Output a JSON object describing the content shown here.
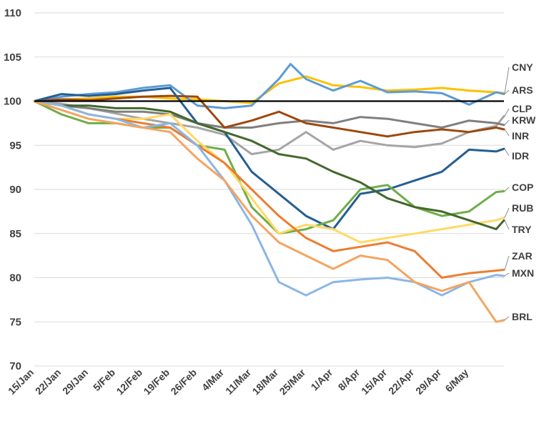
{
  "chart_data": {
    "type": "line",
    "title": "",
    "xlabel": "",
    "ylabel": "",
    "ylim": [
      70,
      110
    ],
    "yticks": [
      "70",
      "75",
      "80",
      "85",
      "90",
      "95",
      "100",
      "105",
      "110"
    ],
    "x_tick_labels": [
      "15/Jan",
      "22/Jan",
      "29/Jan",
      "5/Feb",
      "12/Feb",
      "19/Feb",
      "26/Feb",
      "4/Mar",
      "11/Mar",
      "18/Mar",
      "25/Mar",
      "1/Apr",
      "8/Apr",
      "15/Apr",
      "22/Apr",
      "29/Apr",
      "6/May"
    ],
    "x_range_days": [
      0,
      121
    ],
    "grid": "horizontal",
    "reference_line": 100,
    "series": [
      {
        "name": "CNY",
        "color": "#ffc000",
        "x": [
          0,
          7,
          14,
          21,
          28,
          35,
          42,
          49,
          56,
          63,
          70,
          77,
          84,
          91,
          98,
          105,
          112,
          119,
          121
        ],
        "values": [
          100,
          100.2,
          100.3,
          100.5,
          100.5,
          100.3,
          100.2,
          100.0,
          99.8,
          102.0,
          102.8,
          101.8,
          101.6,
          101.2,
          101.3,
          101.5,
          101.2,
          101.0,
          100.9
        ]
      },
      {
        "name": "ARS",
        "color": "#5b9bd5",
        "x": [
          0,
          7,
          14,
          21,
          28,
          35,
          42,
          49,
          56,
          63,
          66,
          70,
          77,
          84,
          91,
          98,
          105,
          112,
          119,
          121
        ],
        "values": [
          100,
          100.5,
          100.8,
          101.0,
          101.5,
          101.8,
          99.5,
          99.2,
          99.5,
          102.5,
          104.2,
          102.5,
          101.2,
          102.3,
          101.0,
          101.1,
          100.9,
          99.6,
          101.0,
          100.8
        ]
      },
      {
        "name": "CLP",
        "color": "#a5a5a5",
        "x": [
          0,
          7,
          14,
          21,
          28,
          35,
          42,
          49,
          56,
          63,
          70,
          77,
          84,
          91,
          98,
          105,
          112,
          119,
          121
        ],
        "values": [
          100,
          99.7,
          99.2,
          98.6,
          98.0,
          97.5,
          97.0,
          96.2,
          94.0,
          94.5,
          96.5,
          94.5,
          95.5,
          95.0,
          94.8,
          95.2,
          96.5,
          97.2,
          98.3
        ]
      },
      {
        "name": "KRW",
        "color": "#7f7f7f",
        "x": [
          0,
          7,
          14,
          21,
          28,
          35,
          42,
          49,
          56,
          63,
          70,
          77,
          84,
          91,
          98,
          105,
          112,
          119,
          121
        ],
        "values": [
          100,
          99.5,
          99.2,
          98.8,
          98.8,
          98.5,
          97.5,
          97.0,
          97.0,
          97.5,
          97.8,
          97.5,
          98.2,
          98.0,
          97.5,
          97.0,
          97.8,
          97.5,
          97.3
        ]
      },
      {
        "name": "INR",
        "color": "#9e480e",
        "x": [
          0,
          7,
          14,
          21,
          28,
          35,
          42,
          49,
          56,
          63,
          70,
          77,
          84,
          91,
          98,
          105,
          112,
          119,
          121
        ],
        "values": [
          100,
          100.2,
          100.1,
          100.3,
          100.5,
          100.6,
          100.5,
          97.0,
          97.8,
          98.8,
          97.5,
          97.0,
          96.5,
          96.0,
          96.5,
          96.8,
          96.5,
          97.0,
          96.8
        ]
      },
      {
        "name": "IDR",
        "color": "#255e91",
        "x": [
          0,
          7,
          14,
          21,
          28,
          35,
          42,
          49,
          56,
          63,
          70,
          77,
          84,
          91,
          98,
          105,
          112,
          119,
          121
        ],
        "values": [
          100,
          100.8,
          100.6,
          100.8,
          101.2,
          101.5,
          97.5,
          96.5,
          92.0,
          89.5,
          87.0,
          85.5,
          89.5,
          90.0,
          91.0,
          92.0,
          94.5,
          94.3,
          94.6
        ]
      },
      {
        "name": "COP",
        "color": "#70ad47",
        "x": [
          0,
          7,
          14,
          21,
          28,
          35,
          42,
          49,
          56,
          63,
          70,
          77,
          84,
          91,
          98,
          105,
          112,
          119,
          121
        ],
        "values": [
          100,
          98.5,
          97.5,
          97.5,
          97.0,
          97.0,
          95.0,
          94.5,
          88.0,
          85.0,
          85.5,
          86.5,
          90.0,
          90.5,
          88.0,
          87.0,
          87.5,
          89.7,
          89.8
        ]
      },
      {
        "name": "RUB",
        "color": "#ffd966",
        "x": [
          0,
          7,
          14,
          21,
          28,
          35,
          42,
          49,
          56,
          63,
          70,
          77,
          84,
          91,
          98,
          105,
          112,
          119,
          121
        ],
        "values": [
          100,
          99.5,
          98.5,
          98.0,
          98.0,
          98.5,
          95.5,
          93.0,
          89.0,
          85.0,
          86.0,
          85.5,
          84.0,
          84.5,
          85.0,
          85.5,
          86.0,
          86.5,
          86.8
        ]
      },
      {
        "name": "TRY",
        "color": "#43682b",
        "x": [
          0,
          7,
          14,
          21,
          28,
          35,
          42,
          49,
          56,
          63,
          70,
          77,
          84,
          91,
          98,
          105,
          112,
          119,
          121
        ],
        "values": [
          100,
          99.5,
          99.5,
          99.2,
          99.2,
          98.8,
          97.5,
          96.5,
          95.5,
          94.0,
          93.5,
          92.0,
          90.8,
          89.0,
          88.0,
          87.5,
          86.5,
          85.5,
          86.5
        ]
      },
      {
        "name": "ZAR",
        "color": "#ed7d31",
        "x": [
          0,
          7,
          14,
          21,
          28,
          35,
          42,
          49,
          56,
          63,
          70,
          77,
          84,
          91,
          98,
          105,
          112,
          119,
          121
        ],
        "values": [
          100,
          99.5,
          98.5,
          98.0,
          97.5,
          97.0,
          95.0,
          93.0,
          90.0,
          87.0,
          84.5,
          83.0,
          83.5,
          84.0,
          83.0,
          80.0,
          80.5,
          80.8,
          80.9
        ]
      },
      {
        "name": "MXN",
        "color": "#8ab6e6",
        "x": [
          0,
          7,
          14,
          21,
          28,
          35,
          42,
          49,
          56,
          63,
          70,
          77,
          84,
          91,
          98,
          105,
          112,
          119,
          121
        ],
        "values": [
          100,
          99.5,
          98.5,
          98.0,
          97.0,
          97.5,
          95.0,
          91.0,
          86.0,
          79.5,
          78.0,
          79.5,
          79.8,
          80.0,
          79.5,
          78.0,
          79.5,
          80.3,
          80.2
        ]
      },
      {
        "name": "BRL",
        "color": "#f4a460",
        "x": [
          0,
          7,
          14,
          21,
          28,
          35,
          42,
          49,
          56,
          63,
          70,
          77,
          84,
          91,
          98,
          105,
          112,
          119,
          121
        ],
        "values": [
          100,
          99.0,
          98.0,
          97.5,
          97.0,
          96.5,
          93.5,
          91.0,
          87.0,
          84.0,
          82.5,
          81.0,
          82.5,
          82.0,
          79.5,
          78.5,
          79.5,
          75.0,
          75.2
        ]
      }
    ]
  }
}
